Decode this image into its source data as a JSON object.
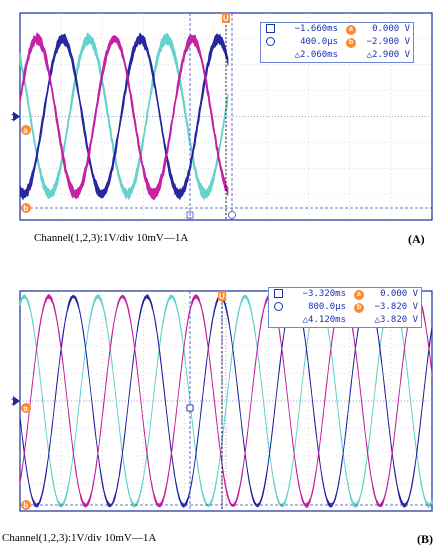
{
  "chart_data": [
    {
      "type": "line",
      "panel_label": "(A)",
      "caption": "Channel(1,2,3):1V/div  10mV—1A",
      "marker_u": "U",
      "marker_1": "1",
      "marker_a": "a",
      "marker_b": "b",
      "cursor_readout": {
        "time_cursor_1": "−1.660ms",
        "time_cursor_2": "400.0µs",
        "time_delta": "△2.060ms",
        "volt_cursor_a": "0.000 V",
        "volt_cursor_b": "−2.900 V",
        "volt_delta": "△2.900 V"
      },
      "grid": true,
      "series_colors": [
        "#5fd0c8",
        "#1c1c9c",
        "#c2189e"
      ],
      "cycles_visible": 5.3,
      "amplitude_divs": 3.0,
      "noise": "heavy"
    },
    {
      "type": "line",
      "panel_label": "(B)",
      "caption": "Channel(1,2,3):1V/div   10mV—1A",
      "marker_u": "U",
      "marker_1": "1",
      "marker_a": "a",
      "marker_b": "b",
      "cursor_readout": {
        "time_cursor_1": "−3.320ms",
        "time_cursor_2": "800.0µs",
        "time_delta": "△4.120ms",
        "volt_cursor_a": "0.000 V",
        "volt_cursor_b": "−3.820 V",
        "volt_delta": "△3.820 V"
      },
      "grid": true,
      "series_colors": [
        "#5fd0c8",
        "#1c1c9c",
        "#c2189e"
      ],
      "cycles_visible": 5.6,
      "amplitude_divs": 3.8,
      "noise": "light"
    }
  ]
}
